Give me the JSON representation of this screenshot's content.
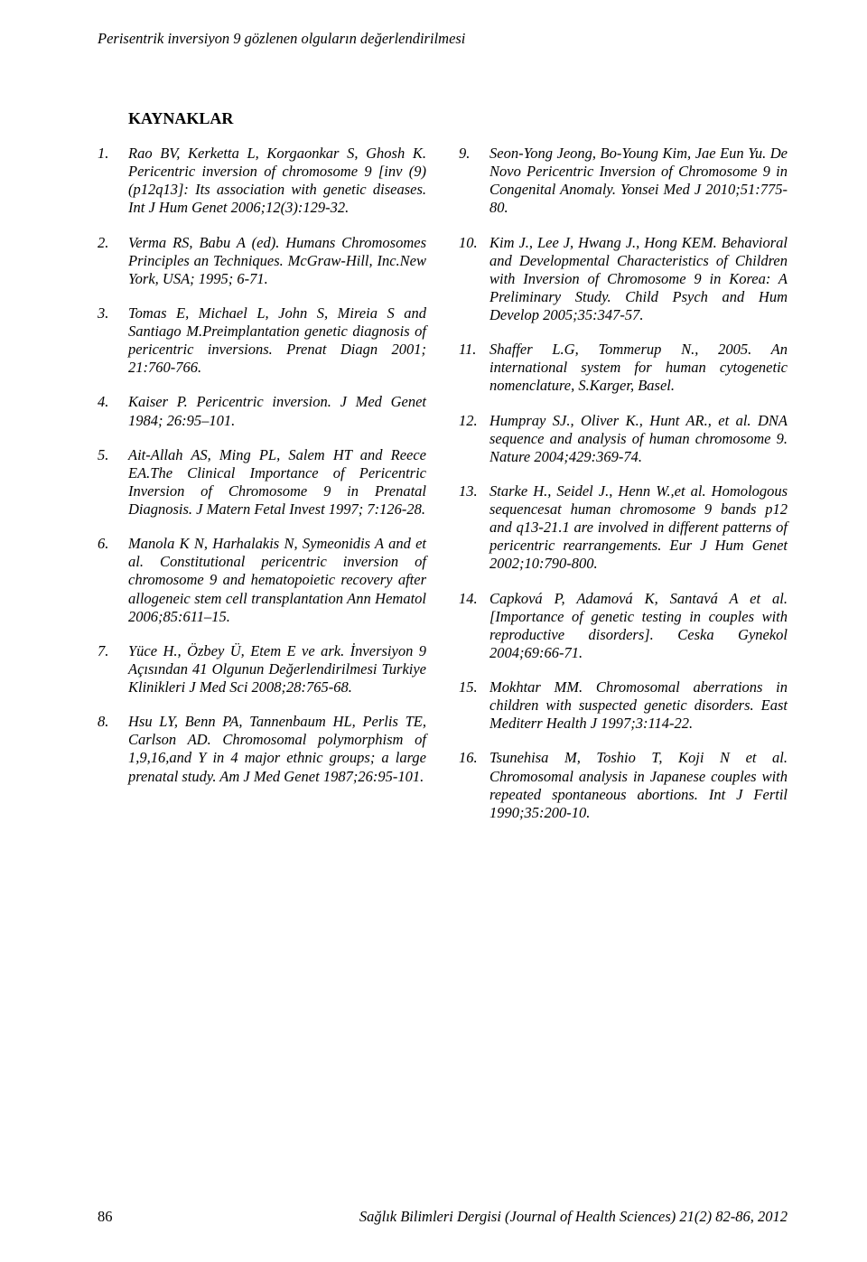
{
  "running_header": "Perisentrik inversiyon 9 gözlenen olguların değerlendirilmesi",
  "section_title": "KAYNAKLAR",
  "left_refs": [
    {
      "n": "1.",
      "t": "Rao BV, Kerketta L, Korgaonkar S, Ghosh K. Pericentric inversion of chromosome 9 [inv (9)(p12q13]: Its association with genetic diseases. Int J Hum Genet 2006;12(3):129-32."
    },
    {
      "n": "2.",
      "t": "Verma RS, Babu A (ed). Humans Chromosomes Principles an Techniques. McGraw-Hill, Inc.New York, USA; 1995; 6-71."
    },
    {
      "n": "3.",
      "t": "Tomas E, Michael L, John S, Mireia S and Santiago M.Preimplantation genetic diagnosis of pericentric inversions. Prenat Diagn 2001; 21:760-766."
    },
    {
      "n": "4.",
      "t": "Kaiser P. Pericentric inversion. J Med Genet 1984; 26:95–101."
    },
    {
      "n": "5.",
      "t": "Ait-Allah AS, Ming PL, Salem HT and Reece EA.The Clinical Importance of Pericentric Inversion of Chromosome 9 in Prenatal Diagnosis. J Matern Fetal Invest 1997; 7:126-28."
    },
    {
      "n": "6.",
      "t": "Manola K N, Harhalakis N, Symeonidis A and et al. Constitutional pericentric inversion of chromosome 9 and hematopoietic recovery after allogeneic stem cell transplantation Ann Hematol 2006;85:611–15."
    },
    {
      "n": "7.",
      "t": "Yüce H., Özbey Ü, Etem E ve ark. İnversiyon 9 Açısından 41 Olgunun Değerlendirilmesi Turkiye Klinikleri J Med Sci 2008;28:765-68."
    },
    {
      "n": "8.",
      "t": "Hsu LY, Benn PA, Tannenbaum HL, Perlis TE, Carlson AD. Chromosomal polymorphism of 1,9,16,and Y in 4 major ethnic groups; a large prenatal study. Am J Med Genet 1987;26:95-101."
    }
  ],
  "right_refs": [
    {
      "n": "9.",
      "t": "Seon-Yong Jeong, Bo-Young Kim, Jae Eun Yu. De Novo Pericentric Inversion of Chromosome 9 in Congenital Anomaly. Yonsei Med J 2010;51:775-80."
    },
    {
      "n": "10.",
      "t": "Kim J., Lee J, Hwang J., Hong KEM. Behavioral and Developmental Characteristics of Children with Inversion of Chromosome 9 in Korea: A Preliminary Study. Child Psych and Hum Develop 2005;35:347-57."
    },
    {
      "n": "11.",
      "t": "Shaffer L.G, Tommerup N., 2005. An international system for human cytogenetic nomenclature, S.Karger, Basel."
    },
    {
      "n": "12.",
      "t": "Humpray SJ., Oliver K., Hunt AR., et al. DNA sequence and analysis of human chromosome 9. Nature 2004;429:369-74."
    },
    {
      "n": "13.",
      "t": "Starke H., Seidel J., Henn W.,et al. Homologous sequencesat human chromosome 9 bands p12 and q13-21.1 are involved in different patterns of pericentric rearrangements. Eur J Hum Genet 2002;10:790-800."
    },
    {
      "n": "14.",
      "t": "Capková P, Adamová K, Santavá A et al. [Importance of genetic testing in couples with reproductive disorders]. Ceska Gynekol 2004;69:66-71."
    },
    {
      "n": "15.",
      "t": "Mokhtar MM. Chromosomal aberrations in children with suspected genetic disorders. East Mediterr Health J 1997;3:114-22."
    },
    {
      "n": "16.",
      "t": "Tsunehisa M, Toshio T, Koji N et al. Chromosomal analysis in Japanese couples with repeated spontaneous abortions. Int J Fertil 1990;35:200-10."
    }
  ],
  "footer": {
    "page_number": "86",
    "journal": "Sağlık Bilimleri Dergisi (Journal of Health Sciences) 21(2) 82-86, 2012"
  }
}
